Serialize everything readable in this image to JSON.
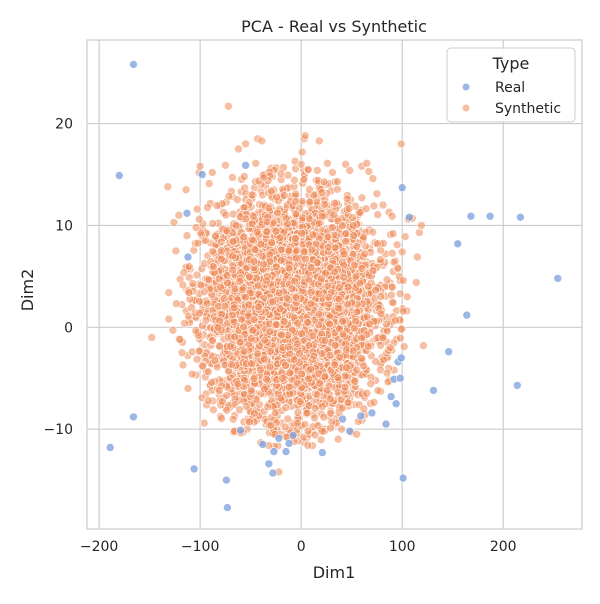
{
  "chart_data": {
    "type": "scatter",
    "title": "PCA - Real vs Synthetic",
    "xlabel": "Dim1",
    "ylabel": "Dim2",
    "xlim": [
      -212,
      278
    ],
    "ylim": [
      -19.8,
      28.2
    ],
    "xticks": [
      -200,
      -100,
      0,
      100,
      200
    ],
    "yticks": [
      -10,
      0,
      10,
      20
    ],
    "grid": true,
    "background": "#ffffff",
    "grid_color": "#cccccc",
    "legend": {
      "title": "Type",
      "location": "top-right",
      "entries": [
        "Real",
        "Synthetic"
      ]
    },
    "series": [
      {
        "name": "Synthetic",
        "color": "#ee8a58",
        "opacity": 0.55,
        "stroke": "#ffffff",
        "note_distribution": "dense cloud roughly Gaussian centered near (-10, 2), Dim1 spread ~45, Dim2 spread ~5.5",
        "points": [
          [
            -148,
            -1.0
          ],
          [
            -132,
            13.8
          ],
          [
            -131,
            3.4
          ],
          [
            -131,
            0.8
          ],
          [
            -127,
            -0.3
          ],
          [
            -126,
            10.3
          ],
          [
            -124,
            7.5
          ],
          [
            -121,
            11.0
          ],
          [
            -120,
            -1.2
          ],
          [
            -118,
            -2.5
          ],
          [
            -117,
            -3.7
          ],
          [
            -114,
            13.5
          ],
          [
            -113,
            9.0
          ],
          [
            -112,
            -6.0
          ],
          [
            -111,
            3.4
          ],
          [
            -108,
            -4.6
          ],
          [
            -103,
            11.6
          ],
          [
            -101,
            15.2
          ],
          [
            -100,
            15.8
          ],
          [
            -96,
            -9.4
          ],
          [
            -91,
            14.1
          ],
          [
            -88,
            15.2
          ],
          [
            -87,
            -8.1
          ],
          [
            -81,
            -6.2
          ],
          [
            -78,
            -7.3
          ],
          [
            -75,
            15.9
          ],
          [
            -72,
            21.7
          ],
          [
            -68,
            14.7
          ],
          [
            -62,
            17.5
          ],
          [
            -61,
            -8.1
          ],
          [
            -55,
            18.0
          ],
          [
            -51,
            -9.3
          ],
          [
            -45,
            16.1
          ],
          [
            -43,
            18.5
          ],
          [
            -39,
            18.3
          ],
          [
            -37,
            14.7
          ],
          [
            -30,
            -9.6
          ],
          [
            -26,
            -10.5
          ],
          [
            -22,
            -14.2
          ],
          [
            -20,
            15.1
          ],
          [
            -14,
            -10.8
          ],
          [
            -7,
            -11.2
          ],
          [
            -6,
            16.3
          ],
          [
            0,
            16.0
          ],
          [
            1,
            17.2
          ],
          [
            3,
            18.5
          ],
          [
            4,
            18.8
          ],
          [
            7,
            15.5
          ],
          [
            16,
            15.4
          ],
          [
            18,
            18.3
          ],
          [
            21,
            -10.2
          ],
          [
            26,
            16.1
          ],
          [
            29,
            -9.9
          ],
          [
            31,
            15.2
          ],
          [
            36,
            14.3
          ],
          [
            40,
            -10.0
          ],
          [
            44,
            16.0
          ],
          [
            48,
            15.4
          ],
          [
            50,
            -10.3
          ],
          [
            55,
            -10.5
          ],
          [
            60,
            15.8
          ],
          [
            62,
            -8.0
          ],
          [
            65,
            16.1
          ],
          [
            67,
            15.3
          ],
          [
            71,
            14.6
          ],
          [
            75,
            13.1
          ],
          [
            76,
            -6.2
          ],
          [
            81,
            12.0
          ],
          [
            85,
            -4.5
          ],
          [
            87,
            11.3
          ],
          [
            88,
            -2.0
          ],
          [
            90,
            10.9
          ],
          [
            91,
            9.2
          ],
          [
            92,
            6.4
          ],
          [
            95,
            8.1
          ],
          [
            96,
            5.8
          ],
          [
            97,
            5.0
          ],
          [
            98,
            3.3
          ],
          [
            99,
            18.0
          ],
          [
            100,
            7.4
          ],
          [
            101,
            4.6
          ],
          [
            101,
            1.6
          ],
          [
            102,
            -1.9
          ],
          [
            103,
            8.9
          ],
          [
            105,
            3.0
          ],
          [
            106,
            10.6
          ],
          [
            110,
            10.7
          ],
          [
            114,
            4.4
          ],
          [
            115,
            6.9
          ],
          [
            117,
            9.3
          ],
          [
            119,
            10.0
          ],
          [
            121,
            -1.8
          ]
        ]
      },
      {
        "name": "Real",
        "color": "#7b9fdc",
        "opacity": 0.75,
        "stroke": "#ffffff",
        "points": [
          [
            -189,
            -11.8
          ],
          [
            -180,
            14.9
          ],
          [
            -166,
            25.8
          ],
          [
            -166,
            -8.8
          ],
          [
            -113,
            11.2
          ],
          [
            -112,
            6.9
          ],
          [
            -106,
            -13.9
          ],
          [
            -98,
            15.0
          ],
          [
            -74,
            -15.0
          ],
          [
            -73,
            -17.7
          ],
          [
            -60,
            -10.1
          ],
          [
            -55,
            15.9
          ],
          [
            -38,
            -11.5
          ],
          [
            -32,
            -13.4
          ],
          [
            -28,
            -14.3
          ],
          [
            -27,
            -12.2
          ],
          [
            -22,
            -10.9
          ],
          [
            -15,
            -12.2
          ],
          [
            -12,
            -11.4
          ],
          [
            -8,
            -10.6
          ],
          [
            21,
            -12.3
          ],
          [
            41,
            -9.0
          ],
          [
            48,
            -10.2
          ],
          [
            59,
            -8.7
          ],
          [
            70,
            -8.4
          ],
          [
            84,
            -9.5
          ],
          [
            89,
            -6.8
          ],
          [
            92,
            -5.1
          ],
          [
            94,
            -7.5
          ],
          [
            96,
            -3.4
          ],
          [
            98,
            -5.0
          ],
          [
            99,
            -3.0
          ],
          [
            100,
            13.7
          ],
          [
            101,
            -14.8
          ],
          [
            107,
            10.8
          ],
          [
            131,
            -6.2
          ],
          [
            146,
            -2.4
          ],
          [
            155,
            8.2
          ],
          [
            164,
            1.2
          ],
          [
            168,
            10.9
          ],
          [
            187,
            10.9
          ],
          [
            214,
            -5.7
          ],
          [
            217,
            10.8
          ],
          [
            254,
            4.8
          ]
        ]
      }
    ]
  }
}
